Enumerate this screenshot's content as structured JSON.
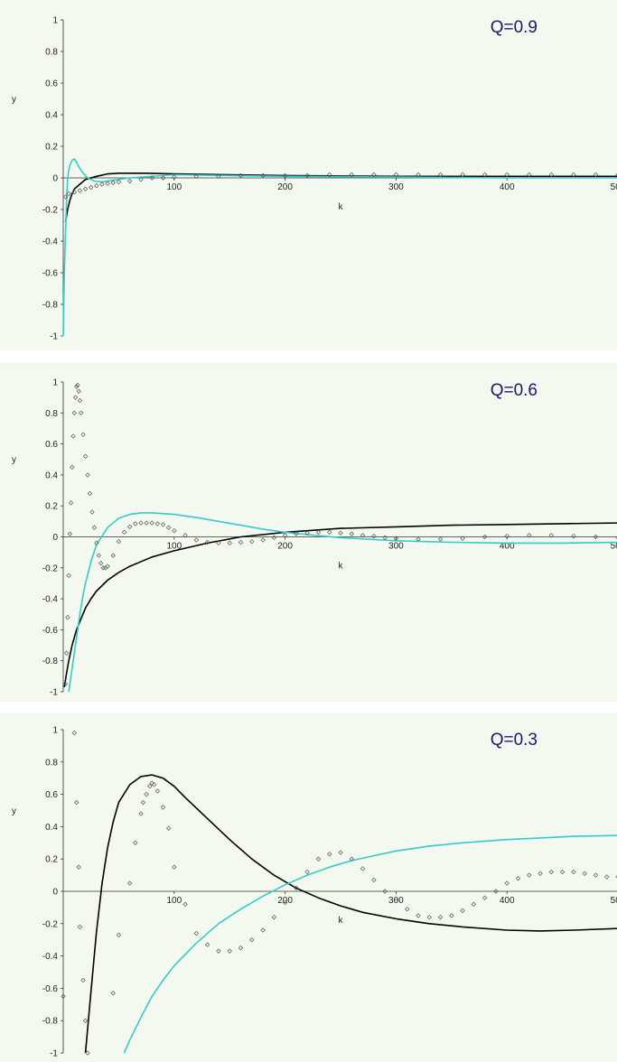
{
  "chart_data": [
    {
      "type": "line",
      "annotation": "Q=0.9",
      "xlabel": "k",
      "ylabel": "y",
      "xlim": [
        0,
        500
      ],
      "ylim": [
        -1,
        1
      ],
      "x_ticks": [
        "100",
        "200",
        "300",
        "400",
        "500"
      ],
      "y_ticks": [
        "1",
        "0.8",
        "0.6",
        "0.4",
        "0.2",
        "0",
        "-0.2",
        "-0.4",
        "-0.6",
        "-0.8",
        "-1"
      ],
      "series": [
        {
          "style": "line",
          "color": "#000000",
          "x": [
            2,
            4,
            6,
            8,
            10,
            15,
            20,
            30,
            40,
            50,
            60,
            75,
            100,
            150,
            200,
            300,
            400,
            500
          ],
          "y": [
            -0.28,
            -0.2,
            -0.14,
            -0.1,
            -0.07,
            -0.04,
            -0.01,
            0.01,
            0.025,
            0.03,
            0.03,
            0.03,
            0.025,
            0.02,
            0.015,
            0.01,
            0.01,
            0.01
          ]
        },
        {
          "style": "line",
          "color": "#33cccc",
          "x": [
            0,
            1,
            2,
            3,
            4,
            5,
            6,
            8,
            10,
            12,
            14,
            18,
            22,
            28,
            35,
            45,
            60,
            80,
            100,
            150,
            200,
            300,
            400,
            500
          ],
          "y": [
            -1.0,
            -0.6,
            -0.35,
            -0.15,
            0.0,
            0.05,
            0.08,
            0.11,
            0.12,
            0.1,
            0.07,
            0.03,
            0.0,
            -0.02,
            -0.025,
            -0.015,
            0.0,
            0.01,
            0.02,
            0.015,
            0.01,
            0.005,
            0.0,
            0.0
          ],
          "extra_point": null
        },
        {
          "style": "points",
          "color": "#555555",
          "x": [
            2,
            5,
            10,
            15,
            20,
            25,
            30,
            35,
            40,
            45,
            50,
            60,
            70,
            80,
            90,
            100,
            120,
            140,
            160,
            180,
            200,
            220,
            240,
            260,
            280,
            300,
            320,
            340,
            360,
            380,
            400,
            420,
            440,
            460,
            480,
            500
          ],
          "y": [
            -0.12,
            -0.1,
            -0.09,
            -0.08,
            -0.07,
            -0.06,
            -0.05,
            -0.04,
            -0.035,
            -0.03,
            -0.025,
            -0.02,
            -0.01,
            0.0,
            0.0,
            0.005,
            0.01,
            0.01,
            0.015,
            0.015,
            0.015,
            0.015,
            0.02,
            0.02,
            0.02,
            0.02,
            0.02,
            0.02,
            0.02,
            0.02,
            0.02,
            0.02,
            0.02,
            0.02,
            0.02,
            0.02
          ]
        }
      ]
    },
    {
      "type": "line",
      "annotation": "Q=0.6",
      "xlabel": "k",
      "ylabel": "y",
      "xlim": [
        0,
        500
      ],
      "ylim": [
        -1,
        1
      ],
      "x_ticks": [
        "100",
        "200",
        "300",
        "400",
        "500"
      ],
      "y_ticks": [
        "1",
        "0.8",
        "0.6",
        "0.4",
        "0.2",
        "0",
        "-0.2",
        "-0.4",
        "-0.6",
        "-0.8",
        "-1"
      ],
      "series": [
        {
          "style": "line",
          "color": "#000000",
          "x": [
            1,
            3,
            5,
            8,
            12,
            16,
            20,
            25,
            30,
            40,
            50,
            60,
            80,
            100,
            130,
            160,
            200,
            250,
            300,
            350,
            400,
            450,
            500
          ],
          "y": [
            -0.97,
            -0.88,
            -0.8,
            -0.7,
            -0.6,
            -0.53,
            -0.46,
            -0.4,
            -0.35,
            -0.28,
            -0.23,
            -0.19,
            -0.13,
            -0.09,
            -0.04,
            0.0,
            0.03,
            0.055,
            0.065,
            0.075,
            0.08,
            0.085,
            0.09
          ]
        },
        {
          "style": "line",
          "color": "#33cccc",
          "x": [
            5,
            8,
            10,
            12,
            15,
            18,
            20,
            25,
            30,
            40,
            50,
            60,
            70,
            80,
            90,
            100,
            120,
            140,
            160,
            180,
            200,
            220,
            250,
            300,
            350,
            400,
            450,
            500
          ],
          "y": [
            -1.0,
            -0.85,
            -0.75,
            -0.65,
            -0.5,
            -0.37,
            -0.3,
            -0.16,
            -0.05,
            0.06,
            0.12,
            0.145,
            0.155,
            0.155,
            0.15,
            0.145,
            0.125,
            0.1,
            0.075,
            0.05,
            0.03,
            0.015,
            -0.005,
            -0.025,
            -0.035,
            -0.04,
            -0.04,
            -0.035
          ]
        },
        {
          "style": "points",
          "color": "#555555",
          "x": [
            2,
            3,
            4,
            5,
            6,
            7,
            8,
            9,
            10,
            11,
            12,
            13,
            14,
            15,
            16,
            18,
            20,
            22,
            24,
            26,
            28,
            30,
            32,
            34,
            36,
            38,
            40,
            45,
            50,
            55,
            60,
            65,
            70,
            75,
            80,
            85,
            90,
            95,
            100,
            110,
            120,
            130,
            140,
            150,
            160,
            170,
            180,
            190,
            200,
            210,
            220,
            230,
            240,
            250,
            260,
            270,
            280,
            290,
            300,
            320,
            340,
            360,
            380,
            400,
            420,
            440,
            460,
            480,
            500
          ],
          "y": [
            -0.95,
            -0.75,
            -0.52,
            -0.25,
            0.02,
            0.22,
            0.45,
            0.65,
            0.8,
            0.9,
            0.97,
            0.98,
            0.94,
            0.88,
            0.8,
            0.66,
            0.52,
            0.4,
            0.28,
            0.16,
            0.06,
            -0.04,
            -0.12,
            -0.17,
            -0.2,
            -0.2,
            -0.19,
            -0.12,
            -0.03,
            0.03,
            0.065,
            0.085,
            0.09,
            0.09,
            0.09,
            0.085,
            0.08,
            0.06,
            0.04,
            0.01,
            -0.02,
            -0.035,
            -0.04,
            -0.04,
            -0.035,
            -0.03,
            -0.02,
            -0.005,
            0.01,
            0.02,
            0.025,
            0.03,
            0.03,
            0.025,
            0.02,
            0.01,
            0.005,
            -0.005,
            -0.01,
            -0.015,
            -0.015,
            -0.01,
            0.0,
            0.005,
            0.01,
            0.01,
            0.005,
            0.0,
            -0.005
          ]
        }
      ]
    },
    {
      "type": "line",
      "annotation": "Q=0.3",
      "xlabel": "k",
      "ylabel": "y",
      "xlim": [
        0,
        500
      ],
      "ylim": [
        -1,
        1
      ],
      "x_ticks": [
        "100",
        "200",
        "300",
        "400",
        "500"
      ],
      "y_ticks": [
        "1",
        "0.8",
        "0.6",
        "0.4",
        "0.2",
        "0",
        "-0.2",
        "-0.4",
        "-0.6",
        "-0.8",
        "-1"
      ],
      "series": [
        {
          "style": "line",
          "color": "#000000",
          "x": [
            20,
            25,
            30,
            35,
            40,
            45,
            50,
            60,
            70,
            80,
            90,
            100,
            110,
            130,
            150,
            170,
            190,
            210,
            230,
            250,
            270,
            300,
            330,
            360,
            400,
            430,
            460,
            500
          ],
          "y": [
            -1.0,
            -0.62,
            -0.25,
            0.05,
            0.27,
            0.43,
            0.55,
            0.66,
            0.71,
            0.72,
            0.7,
            0.65,
            0.58,
            0.45,
            0.32,
            0.2,
            0.1,
            0.02,
            -0.04,
            -0.09,
            -0.13,
            -0.17,
            -0.2,
            -0.22,
            -0.24,
            -0.245,
            -0.24,
            -0.23
          ]
        },
        {
          "style": "line",
          "color": "#33cccc",
          "x": [
            55,
            60,
            70,
            80,
            90,
            100,
            120,
            140,
            160,
            180,
            200,
            220,
            240,
            260,
            280,
            300,
            330,
            360,
            400,
            430,
            460,
            500
          ],
          "y": [
            -1.0,
            -0.92,
            -0.78,
            -0.65,
            -0.55,
            -0.46,
            -0.32,
            -0.2,
            -0.11,
            -0.03,
            0.04,
            0.1,
            0.15,
            0.19,
            0.22,
            0.25,
            0.28,
            0.3,
            0.32,
            0.33,
            0.34,
            0.345
          ]
        },
        {
          "style": "points",
          "color": "#555555",
          "x": [
            0,
            10,
            12,
            14,
            15,
            18,
            20,
            22,
            45,
            50,
            60,
            65,
            70,
            72,
            75,
            78,
            80,
            82,
            85,
            90,
            95,
            100,
            110,
            120,
            130,
            140,
            150,
            160,
            170,
            180,
            190,
            200,
            210,
            220,
            230,
            240,
            250,
            260,
            270,
            280,
            290,
            300,
            310,
            320,
            330,
            340,
            350,
            360,
            370,
            380,
            390,
            400,
            410,
            420,
            430,
            440,
            450,
            460,
            470,
            480,
            490,
            500
          ],
          "y": [
            -0.65,
            0.98,
            0.55,
            0.15,
            -0.22,
            -0.55,
            -0.8,
            -1.0,
            -0.63,
            -0.27,
            0.05,
            0.3,
            0.48,
            0.55,
            0.6,
            0.65,
            0.67,
            0.66,
            0.62,
            0.52,
            0.39,
            0.15,
            -0.08,
            -0.26,
            -0.33,
            -0.37,
            -0.37,
            -0.35,
            -0.3,
            -0.24,
            -0.16,
            -0.07,
            0.02,
            0.12,
            0.2,
            0.23,
            0.24,
            0.2,
            0.14,
            0.07,
            0.0,
            -0.06,
            -0.11,
            -0.15,
            -0.16,
            -0.16,
            -0.15,
            -0.12,
            -0.08,
            -0.04,
            0.0,
            0.05,
            0.08,
            0.1,
            0.11,
            0.12,
            0.12,
            0.12,
            0.11,
            0.1,
            0.09,
            0.09
          ]
        }
      ]
    }
  ]
}
